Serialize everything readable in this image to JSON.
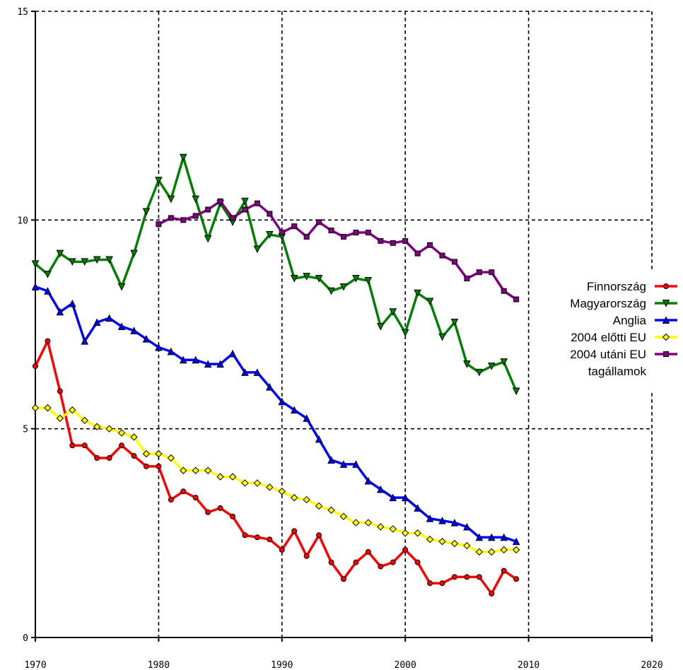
{
  "chart_data": {
    "type": "line",
    "title": "",
    "xlabel": "",
    "ylabel": "",
    "xlim": [
      1970,
      2020
    ],
    "ylim": [
      0,
      15
    ],
    "x_ticks": [
      "1970",
      "1980",
      "1990",
      "2000",
      "2010",
      "2020"
    ],
    "y_ticks": [
      "0",
      "5",
      "10",
      "15"
    ],
    "grid": true,
    "legend_position": "right",
    "legend": [
      "Finnország",
      "Magyarország",
      "Anglia",
      "2004 előtti EU",
      "2004 utáni  EU",
      "tagállamok"
    ],
    "series": [
      {
        "name": "Finnország",
        "color": "#ff0000",
        "marker": "circle",
        "x": [
          1970,
          1971,
          1972,
          1973,
          1974,
          1975,
          1976,
          1977,
          1978,
          1979,
          1980,
          1981,
          1982,
          1983,
          1984,
          1985,
          1986,
          1987,
          1988,
          1989,
          1990,
          1991,
          1992,
          1993,
          1994,
          1995,
          1996,
          1997,
          1998,
          1999,
          2000,
          2001,
          2002,
          2003,
          2004,
          2005,
          2006,
          2007,
          2008,
          2009
        ],
        "y": [
          6.5,
          7.1,
          5.9,
          4.6,
          4.6,
          4.3,
          4.3,
          4.6,
          4.35,
          4.1,
          4.1,
          3.3,
          3.5,
          3.35,
          3.0,
          3.1,
          2.9,
          2.45,
          2.4,
          2.35,
          2.1,
          2.55,
          1.95,
          2.45,
          1.8,
          1.4,
          1.8,
          2.05,
          1.7,
          1.8,
          2.1,
          1.8,
          1.3,
          1.3,
          1.45,
          1.45,
          1.45,
          1.05,
          1.6,
          1.4
        ]
      },
      {
        "name": "Magyarország",
        "color": "#008000",
        "marker": "triangle-down",
        "x": [
          1970,
          1971,
          1972,
          1973,
          1974,
          1975,
          1976,
          1977,
          1978,
          1979,
          1980,
          1981,
          1982,
          1983,
          1984,
          1985,
          1986,
          1987,
          1988,
          1989,
          1990,
          1991,
          1992,
          1993,
          1994,
          1995,
          1996,
          1997,
          1998,
          1999,
          2000,
          2001,
          2002,
          2003,
          2004,
          2005,
          2006,
          2007,
          2008,
          2009
        ],
        "y": [
          8.95,
          8.7,
          9.2,
          9.0,
          9.0,
          9.05,
          9.05,
          8.4,
          9.2,
          10.2,
          10.95,
          10.5,
          11.5,
          10.5,
          9.55,
          10.4,
          9.95,
          10.45,
          9.3,
          9.65,
          9.6,
          8.6,
          8.65,
          8.6,
          8.3,
          8.4,
          8.6,
          8.55,
          7.45,
          7.8,
          7.3,
          8.25,
          8.05,
          7.2,
          7.55,
          6.55,
          6.35,
          6.5,
          6.6,
          5.9
        ]
      },
      {
        "name": "Anglia",
        "color": "#0000ff",
        "marker": "triangle-up",
        "x": [
          1970,
          1971,
          1972,
          1973,
          1974,
          1975,
          1976,
          1977,
          1978,
          1979,
          1980,
          1981,
          1982,
          1983,
          1984,
          1985,
          1986,
          1987,
          1988,
          1989,
          1990,
          1991,
          1992,
          1993,
          1994,
          1995,
          1996,
          1997,
          1998,
          1999,
          2000,
          2001,
          2002,
          2003,
          2004,
          2005,
          2006,
          2007,
          2008,
          2009
        ],
        "y": [
          8.4,
          8.3,
          7.8,
          8.0,
          7.1,
          7.55,
          7.65,
          7.45,
          7.35,
          7.15,
          6.95,
          6.85,
          6.65,
          6.65,
          6.55,
          6.55,
          6.8,
          6.35,
          6.35,
          6.0,
          5.65,
          5.45,
          5.25,
          4.75,
          4.25,
          4.15,
          4.15,
          3.75,
          3.55,
          3.35,
          3.35,
          3.1,
          2.85,
          2.8,
          2.75,
          2.65,
          2.4,
          2.4,
          2.4,
          2.3
        ]
      },
      {
        "name": "2004 előtti EU",
        "color": "#ffff00",
        "marker": "diamond",
        "x": [
          1970,
          1971,
          1972,
          1973,
          1974,
          1975,
          1976,
          1977,
          1978,
          1979,
          1980,
          1981,
          1982,
          1983,
          1984,
          1985,
          1986,
          1987,
          1988,
          1989,
          1990,
          1991,
          1992,
          1993,
          1994,
          1995,
          1996,
          1997,
          1998,
          1999,
          2000,
          2001,
          2002,
          2003,
          2004,
          2005,
          2006,
          2007,
          2008,
          2009
        ],
        "y": [
          5.5,
          5.5,
          5.25,
          5.45,
          5.2,
          5.05,
          5.0,
          4.9,
          4.8,
          4.4,
          4.4,
          4.3,
          4.0,
          4.0,
          4.0,
          3.85,
          3.85,
          3.7,
          3.7,
          3.6,
          3.5,
          3.35,
          3.3,
          3.15,
          3.05,
          2.9,
          2.75,
          2.75,
          2.65,
          2.6,
          2.5,
          2.5,
          2.35,
          2.3,
          2.25,
          2.2,
          2.05,
          2.05,
          2.1,
          2.1
        ]
      },
      {
        "name": "2004 utáni  EU tagállamok",
        "color": "#800080",
        "marker": "square",
        "x": [
          1980,
          1981,
          1982,
          1983,
          1984,
          1985,
          1986,
          1987,
          1988,
          1989,
          1990,
          1991,
          1992,
          1993,
          1994,
          1995,
          1996,
          1997,
          1998,
          1999,
          2000,
          2001,
          2002,
          2003,
          2004,
          2005,
          2006,
          2007,
          2008,
          2009
        ],
        "y": [
          9.9,
          10.05,
          10.0,
          10.1,
          10.25,
          10.45,
          10.05,
          10.25,
          10.4,
          10.15,
          9.7,
          9.85,
          9.6,
          9.95,
          9.75,
          9.6,
          9.7,
          9.7,
          9.5,
          9.45,
          9.5,
          9.2,
          9.4,
          9.15,
          9.0,
          8.6,
          8.75,
          8.75,
          8.3,
          8.1
        ]
      }
    ]
  }
}
